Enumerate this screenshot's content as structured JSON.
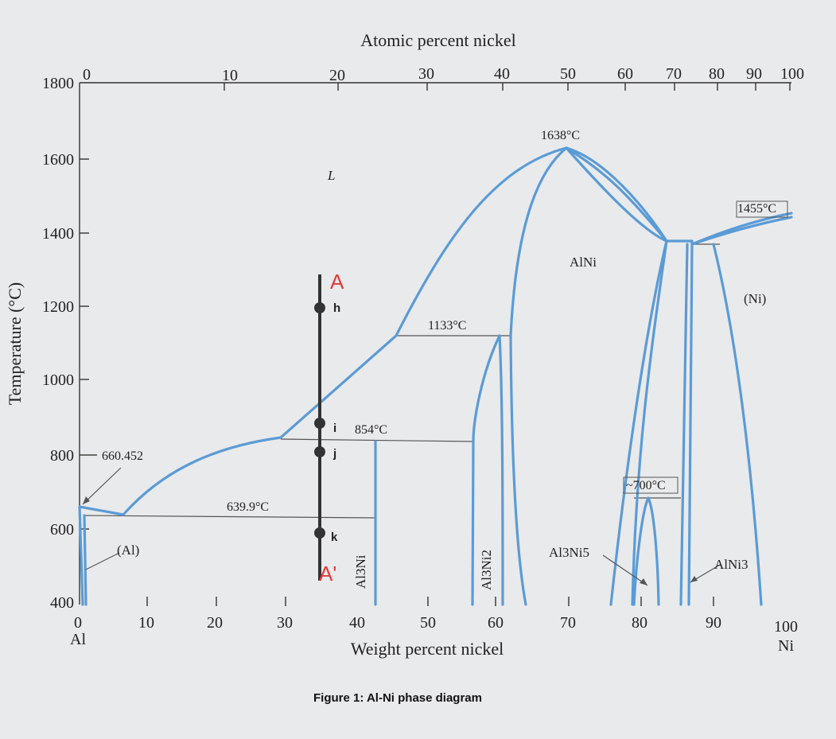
{
  "diagram": {
    "top_axis_title": "Atomic percent nickel",
    "top_ticks": [
      "0",
      "10",
      "20",
      "30",
      "40",
      "50",
      "60",
      "70",
      "80",
      "90",
      "100"
    ],
    "left_axis_title": "Temperature (°C)",
    "left_ticks": [
      "1800",
      "1600",
      "1400",
      "1200",
      "1000",
      "800",
      "600",
      "400"
    ],
    "bottom_axis_title": "Weight percent nickel",
    "bottom_ticks": [
      "0",
      "10",
      "20",
      "30",
      "40",
      "50",
      "60",
      "70",
      "80",
      "90",
      "100"
    ],
    "bottom_left_label": "Al",
    "bottom_right_label": "Ni",
    "phase_labels": {
      "liquid": "L",
      "alni": "AlNi",
      "ni": "(Ni)",
      "al": "(Al)",
      "al3ni": "Al3Ni",
      "al3ni2": "Al3Ni2",
      "al3ni5": "Al3Ni5",
      "alni3": "AlNi3"
    },
    "temperature_annotations": {
      "t1638": "1638°C",
      "t1455": "1455°C",
      "t1133": "1133°C",
      "t854": "854°C",
      "t700": "~700°C",
      "t660": "660.452",
      "t639": "639.9°C"
    },
    "cooling_path": {
      "start_label": "A",
      "end_label": "A'",
      "points": [
        {
          "label": "h",
          "temperature": 1200
        },
        {
          "label": "i",
          "temperature": 880
        },
        {
          "label": "j",
          "temperature": 820
        },
        {
          "label": "k",
          "temperature": 600
        }
      ]
    },
    "caption": "Figure 1: Al-Ni phase diagram",
    "colors": {
      "phase_lines": "#5b9bd5",
      "marker": "#e03a3a",
      "path": "#333333"
    }
  }
}
